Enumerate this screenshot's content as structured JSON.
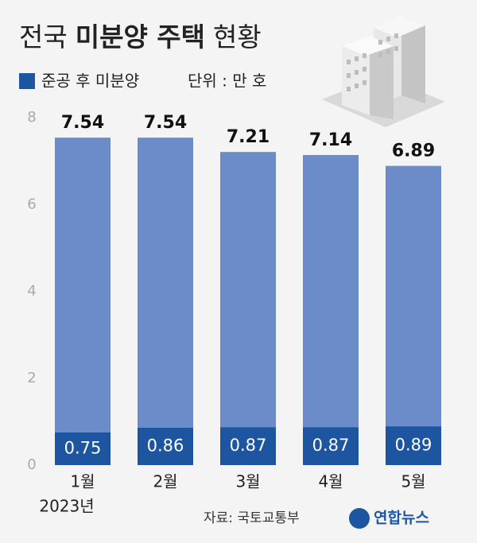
{
  "chart_data": {
    "type": "bar",
    "title": [
      "전국",
      "미분양 주택",
      "현황"
    ],
    "unit_label": "단위 : 만 호",
    "categories": [
      "1월",
      "2월",
      "3월",
      "4월",
      "5월"
    ],
    "year_label": "2023년",
    "series": [
      {
        "color": "#6b8cc8",
        "values": [
          7.54,
          7.54,
          7.21,
          7.14,
          6.89
        ]
      },
      {
        "name": "준공 후 미분양",
        "color": "#1e55a0",
        "values": [
          0.75,
          0.86,
          0.87,
          0.87,
          0.89
        ]
      }
    ],
    "ylim": [
      0,
      8
    ],
    "yticks": [
      0,
      2,
      4,
      6,
      8
    ],
    "grid": false,
    "source": "자료: 국토교통부",
    "logo": "연합뉴스"
  }
}
